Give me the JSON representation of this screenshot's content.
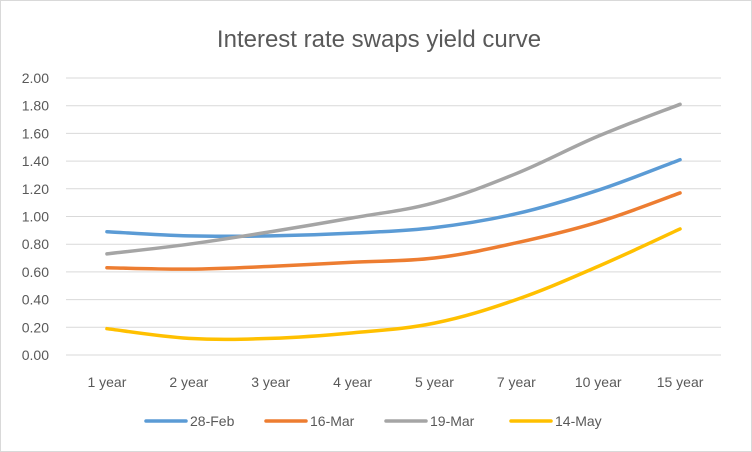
{
  "chart_data": {
    "type": "line",
    "title": "Interest rate swaps yield curve",
    "xlabel": "",
    "ylabel": "",
    "ylim": [
      0,
      2
    ],
    "ytick_step": 0.2,
    "yticks": [
      "0.00",
      "0.20",
      "0.40",
      "0.60",
      "0.80",
      "1.00",
      "1.20",
      "1.40",
      "1.60",
      "1.80",
      "2.00"
    ],
    "grid": true,
    "legend_position": "bottom",
    "categories": [
      "1 year",
      "2 year",
      "3 year",
      "4 year",
      "5 year",
      "7 year",
      "10 year",
      "15 year"
    ],
    "series": [
      {
        "name": "28-Feb",
        "color": "#5b9bd5",
        "values": [
          0.89,
          0.86,
          0.86,
          0.88,
          0.92,
          1.02,
          1.19,
          1.41
        ]
      },
      {
        "name": "16-Mar",
        "color": "#ed7d31",
        "values": [
          0.63,
          0.62,
          0.64,
          0.67,
          0.7,
          0.81,
          0.96,
          1.17
        ]
      },
      {
        "name": "19-Mar",
        "color": "#a5a5a5",
        "values": [
          0.73,
          0.8,
          0.89,
          0.99,
          1.1,
          1.31,
          1.58,
          1.81
        ]
      },
      {
        "name": "14-May",
        "color": "#ffc000",
        "values": [
          0.19,
          0.12,
          0.12,
          0.16,
          0.23,
          0.4,
          0.64,
          0.91
        ]
      }
    ]
  }
}
